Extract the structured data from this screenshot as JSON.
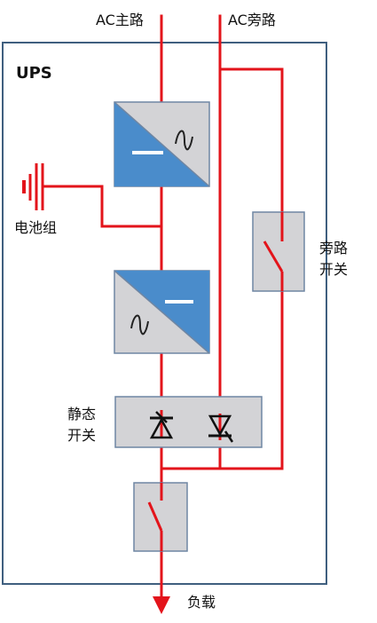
{
  "labels": {
    "ac_main": "AC主路",
    "ac_bypass": "AC旁路",
    "ups": "UPS",
    "battery": "电池组",
    "bypass_switch_line1": "旁路",
    "bypass_switch_line2": "开关",
    "static_switch_line1": "静态",
    "static_switch_line2": "开关",
    "load": "负载"
  },
  "colors": {
    "wire": "#e3141b",
    "ups_border": "#3f5f7f",
    "component_fill": "#d3d3d6",
    "component_border": "#6f86a3",
    "converter_blue": "#4a8ccb",
    "symbol_dark": "#111111"
  }
}
